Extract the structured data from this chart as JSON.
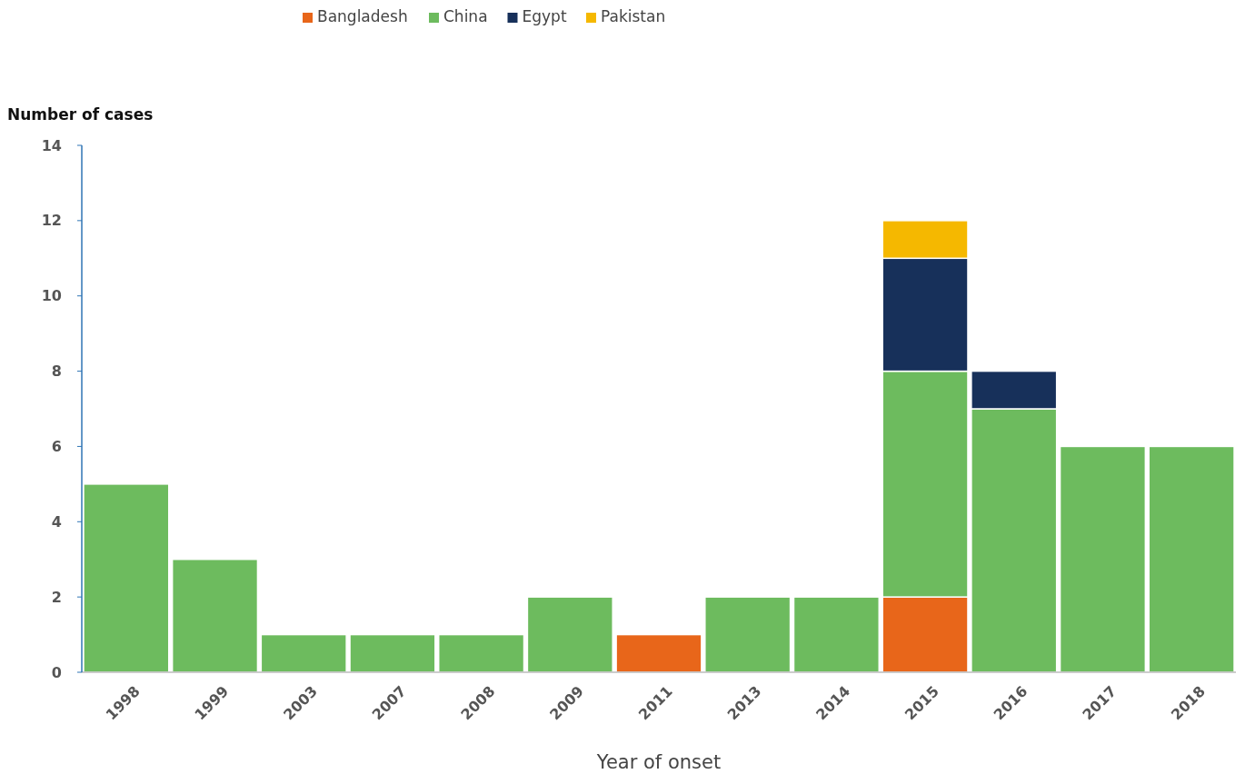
{
  "chart_data": {
    "type": "bar",
    "stacked": true,
    "ylabel": "Number of cases",
    "xlabel": "Year of onset",
    "categories": [
      "1998",
      "1999",
      "2003",
      "2007",
      "2008",
      "2009",
      "2011",
      "2013",
      "2014",
      "2015",
      "2016",
      "2017",
      "2018"
    ],
    "series": [
      {
        "name": "Bangladesh",
        "color": "#e8661a",
        "values": [
          0,
          0,
          0,
          0,
          0,
          0,
          1,
          0,
          0,
          2,
          0,
          0,
          0
        ]
      },
      {
        "name": "China",
        "color": "#6dbb5e",
        "values": [
          5,
          3,
          1,
          1,
          1,
          2,
          0,
          2,
          2,
          6,
          7,
          6,
          6
        ]
      },
      {
        "name": "Egypt",
        "color": "#17305a",
        "values": [
          0,
          0,
          0,
          0,
          0,
          0,
          0,
          0,
          0,
          3,
          1,
          0,
          0
        ]
      },
      {
        "name": "Pakistan",
        "color": "#f5b800",
        "values": [
          0,
          0,
          0,
          0,
          0,
          0,
          0,
          0,
          0,
          1,
          0,
          0,
          0
        ]
      }
    ],
    "ylim": [
      0,
      14
    ],
    "yticks": [
      0,
      2,
      4,
      6,
      8,
      10,
      12,
      14
    ],
    "legend": "top",
    "grid": false
  }
}
